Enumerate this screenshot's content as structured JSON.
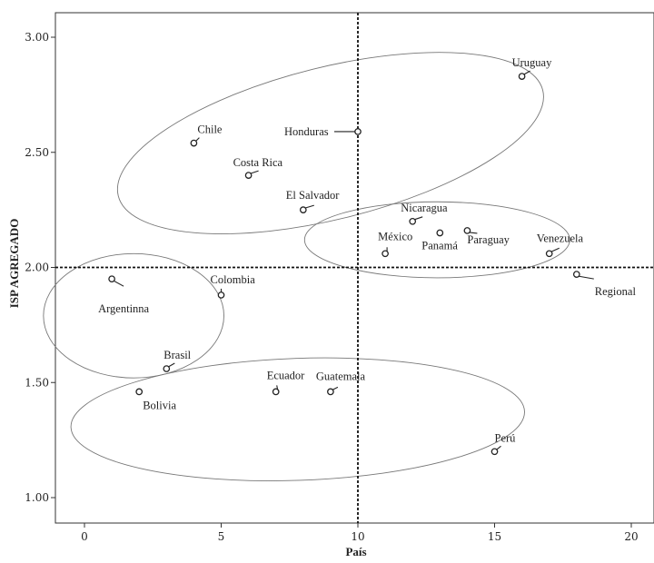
{
  "chart_data": {
    "type": "scatter",
    "title": "",
    "xlabel": "País",
    "ylabel": "ISP AGREGADO",
    "xlim": [
      -1,
      20.8
    ],
    "ylim": [
      0.9,
      3.1
    ],
    "xticks": [
      0,
      5,
      10,
      15,
      20
    ],
    "yticks": [
      1.0,
      1.5,
      2.0,
      2.5,
      3.0
    ],
    "xtick_labels": [
      "0",
      "5",
      "10",
      "15",
      "20"
    ],
    "ytick_labels": [
      "1.00",
      "1.50",
      "2.00",
      "2.50",
      "3.00"
    ],
    "grid": false,
    "reference_lines": {
      "x": 10,
      "y": 2.0,
      "style": "dotted"
    },
    "points": [
      {
        "label": "Argentinna",
        "x": 1,
        "y": 1.95
      },
      {
        "label": "Bolivia",
        "x": 2,
        "y": 1.46
      },
      {
        "label": "Brasil",
        "x": 3,
        "y": 1.56
      },
      {
        "label": "Chile",
        "x": 4,
        "y": 2.54
      },
      {
        "label": "Colombia",
        "x": 5,
        "y": 1.88
      },
      {
        "label": "Costa Rica",
        "x": 6,
        "y": 2.4
      },
      {
        "label": "Ecuador",
        "x": 7,
        "y": 1.46
      },
      {
        "label": "El Salvador",
        "x": 8,
        "y": 2.25
      },
      {
        "label": "Guatemala",
        "x": 9,
        "y": 1.46
      },
      {
        "label": "Honduras",
        "x": 10,
        "y": 2.59
      },
      {
        "label": "México",
        "x": 11,
        "y": 2.06
      },
      {
        "label": "Nicaragua",
        "x": 12,
        "y": 2.2
      },
      {
        "label": "Panamá",
        "x": 13,
        "y": 2.15
      },
      {
        "label": "Paraguay",
        "x": 14,
        "y": 2.16
      },
      {
        "label": "Perú",
        "x": 15,
        "y": 1.2
      },
      {
        "label": "Uruguay",
        "x": 16,
        "y": 2.83
      },
      {
        "label": "Venezuela",
        "x": 17,
        "y": 2.06
      },
      {
        "label": "Regional",
        "x": 18,
        "y": 1.97
      }
    ],
    "ellipses": [
      {
        "cx": 9.0,
        "cy": 2.54,
        "rx": 8.0,
        "ry": 0.33,
        "rotation_deg": -14
      },
      {
        "cx": 12.9,
        "cy": 2.12,
        "rx": 4.85,
        "ry": 0.165,
        "rotation_deg": 0
      },
      {
        "cx": 1.8,
        "cy": 1.79,
        "rx": 3.3,
        "ry": 0.27,
        "rotation_deg": 0
      },
      {
        "cx": 7.8,
        "cy": 1.34,
        "rx": 8.3,
        "ry": 0.265,
        "rotation_deg": -2
      }
    ]
  }
}
